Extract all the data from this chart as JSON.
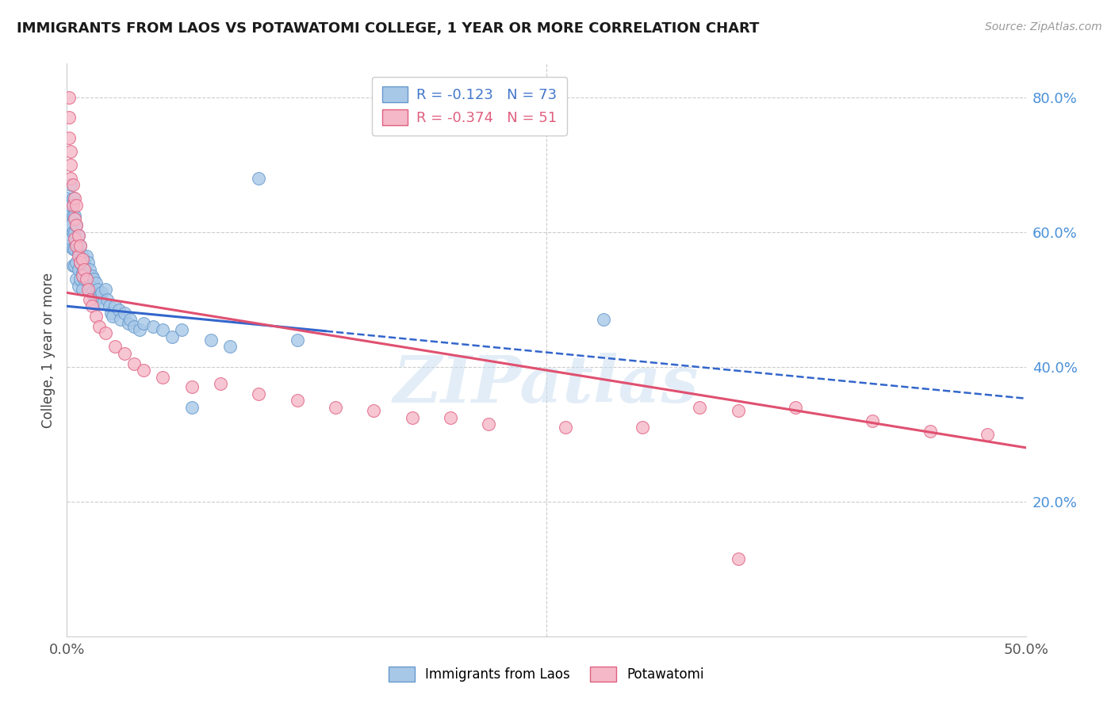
{
  "title": "IMMIGRANTS FROM LAOS VS POTAWATOMI COLLEGE, 1 YEAR OR MORE CORRELATION CHART",
  "source": "Source: ZipAtlas.com",
  "ylabel": "College, 1 year or more",
  "xlim": [
    0.0,
    0.5
  ],
  "ylim": [
    0.0,
    0.85
  ],
  "ytick_vals": [
    0.2,
    0.4,
    0.6,
    0.8
  ],
  "ytick_labels": [
    "20.0%",
    "40.0%",
    "60.0%",
    "80.0%"
  ],
  "xtick_vals": [
    0.0,
    0.5
  ],
  "xtick_labels": [
    "0.0%",
    "50.0%"
  ],
  "grid_color": "#cccccc",
  "background_color": "#ffffff",
  "series1_color": "#a8c8e8",
  "series1_edge": "#6699cc",
  "series2_color": "#f5b8c8",
  "series2_edge": "#e06080",
  "trend1_color": "#3366cc",
  "trend2_color": "#e05070",
  "watermark": "ZIPatlas",
  "series1_label": "Immigrants from Laos",
  "series2_label": "Potawatomi",
  "legend_line1": "R = -0.123   N = 73",
  "legend_line2": "R = -0.374   N = 51",
  "legend_color1": "#4477cc",
  "legend_color2": "#e06080",
  "scatter1_x": [
    0.0,
    0.001,
    0.001,
    0.001,
    0.002,
    0.002,
    0.002,
    0.002,
    0.003,
    0.003,
    0.003,
    0.003,
    0.003,
    0.004,
    0.004,
    0.004,
    0.004,
    0.005,
    0.005,
    0.005,
    0.005,
    0.006,
    0.006,
    0.006,
    0.006,
    0.007,
    0.007,
    0.007,
    0.008,
    0.008,
    0.008,
    0.009,
    0.009,
    0.01,
    0.01,
    0.011,
    0.011,
    0.012,
    0.012,
    0.013,
    0.013,
    0.014,
    0.014,
    0.015,
    0.015,
    0.016,
    0.017,
    0.018,
    0.019,
    0.02,
    0.021,
    0.022,
    0.023,
    0.024,
    0.025,
    0.027,
    0.028,
    0.03,
    0.032,
    0.033,
    0.035,
    0.038,
    0.04,
    0.045,
    0.05,
    0.055,
    0.06,
    0.065,
    0.075,
    0.085,
    0.1,
    0.12,
    0.28
  ],
  "scatter1_y": [
    0.65,
    0.63,
    0.61,
    0.58,
    0.67,
    0.64,
    0.61,
    0.59,
    0.65,
    0.625,
    0.6,
    0.575,
    0.55,
    0.625,
    0.6,
    0.575,
    0.55,
    0.61,
    0.585,
    0.555,
    0.53,
    0.595,
    0.57,
    0.545,
    0.52,
    0.58,
    0.555,
    0.53,
    0.565,
    0.54,
    0.515,
    0.555,
    0.53,
    0.565,
    0.54,
    0.555,
    0.53,
    0.545,
    0.52,
    0.535,
    0.51,
    0.53,
    0.505,
    0.525,
    0.5,
    0.515,
    0.505,
    0.51,
    0.495,
    0.515,
    0.5,
    0.49,
    0.48,
    0.475,
    0.49,
    0.485,
    0.47,
    0.48,
    0.465,
    0.47,
    0.46,
    0.455,
    0.465,
    0.46,
    0.455,
    0.445,
    0.455,
    0.34,
    0.44,
    0.43,
    0.68,
    0.44,
    0.47
  ],
  "scatter2_x": [
    0.001,
    0.001,
    0.001,
    0.002,
    0.002,
    0.002,
    0.003,
    0.003,
    0.004,
    0.004,
    0.004,
    0.005,
    0.005,
    0.005,
    0.006,
    0.006,
    0.007,
    0.007,
    0.008,
    0.008,
    0.009,
    0.01,
    0.011,
    0.012,
    0.013,
    0.015,
    0.017,
    0.02,
    0.025,
    0.03,
    0.035,
    0.04,
    0.05,
    0.065,
    0.08,
    0.1,
    0.12,
    0.14,
    0.16,
    0.18,
    0.2,
    0.22,
    0.26,
    0.3,
    0.33,
    0.35,
    0.38,
    0.42,
    0.45,
    0.48,
    0.35
  ],
  "scatter2_y": [
    0.8,
    0.77,
    0.74,
    0.72,
    0.7,
    0.68,
    0.67,
    0.64,
    0.65,
    0.62,
    0.59,
    0.64,
    0.61,
    0.58,
    0.595,
    0.565,
    0.58,
    0.555,
    0.56,
    0.535,
    0.545,
    0.53,
    0.515,
    0.5,
    0.49,
    0.475,
    0.46,
    0.45,
    0.43,
    0.42,
    0.405,
    0.395,
    0.385,
    0.37,
    0.375,
    0.36,
    0.35,
    0.34,
    0.335,
    0.325,
    0.325,
    0.315,
    0.31,
    0.31,
    0.34,
    0.335,
    0.34,
    0.32,
    0.305,
    0.3,
    0.115
  ],
  "trend1_x0": 0.0,
  "trend1_y0": 0.49,
  "trend1_x1": 0.135,
  "trend1_y1": 0.453,
  "trend1_dash_x1": 0.5,
  "trend1_dash_y1": 0.353,
  "trend2_x0": 0.0,
  "trend2_y0": 0.51,
  "trend2_x1": 0.5,
  "trend2_y1": 0.28
}
